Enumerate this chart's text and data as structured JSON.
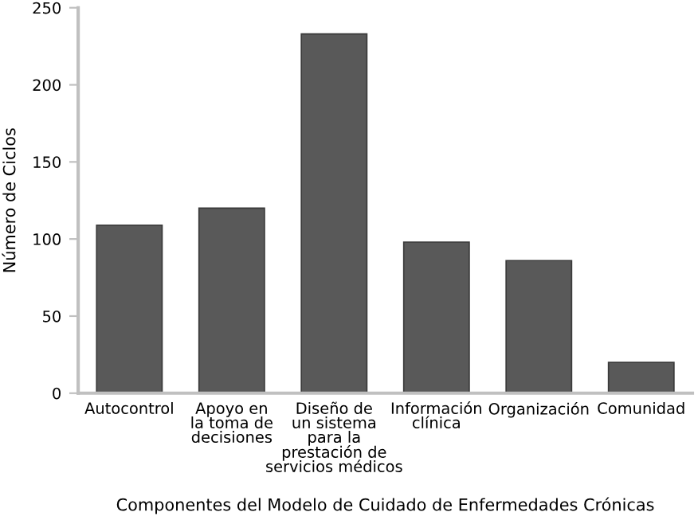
{
  "chart_data": {
    "type": "bar",
    "xlabel": "Componentes del Modelo de Cuidado de Enfermedades Crónicas",
    "ylabel": "Número de Ciclos",
    "categories": [
      "Autocontrol",
      "Apoyo en\nla toma de\ndecisiones",
      "Diseño de\nun sistema\npara la\nprestación de\nservicios médicos",
      "Información\nclínica",
      "Organización",
      "Comunidad"
    ],
    "values": [
      109,
      120,
      233,
      98,
      86,
      20
    ],
    "color": "#595959",
    "ylim": [
      0,
      250
    ],
    "yticks": [
      0,
      50,
      100,
      150,
      200,
      250
    ],
    "grid": false,
    "legend": false
  }
}
